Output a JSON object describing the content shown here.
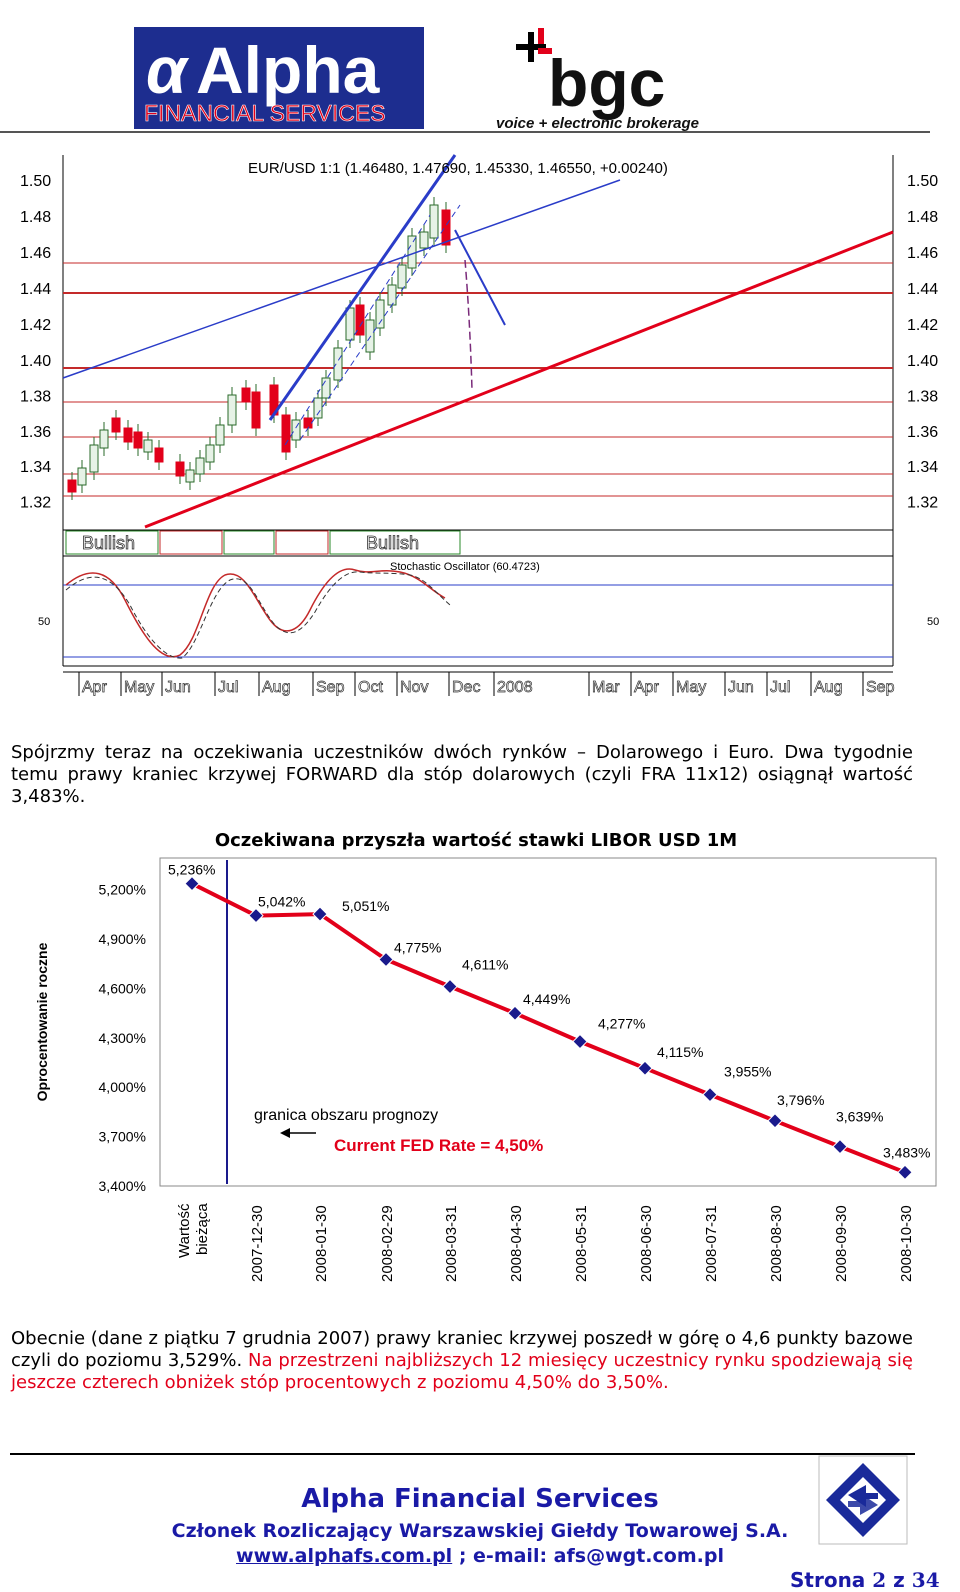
{
  "header": {
    "alpha_logo_text": "Alpha",
    "alpha_logo_sub": "FINANCIAL SERVICES",
    "bgc_logo_text": "bgc",
    "bgc_tagline": "voice + electronic brokerage"
  },
  "fx_chart": {
    "title": "EUR/USD 1:1 (1.46480, 1.47690, 1.45330, 1.46550, +0.00240)",
    "y_ticks": [
      "1.50",
      "1.48",
      "1.46",
      "1.44",
      "1.42",
      "1.40",
      "1.38",
      "1.36",
      "1.34",
      "1.32"
    ],
    "bullish_labels": [
      "Bullish",
      "Bullish"
    ],
    "oscillator_label": "Stochastic Oscillator (60.4723)",
    "oscillator_tick": "50",
    "month_labels": [
      "Apr",
      "May",
      "Jun",
      "Jul",
      "Aug",
      "Sep",
      "Oct",
      "Nov",
      "Dec",
      "2008",
      "Mar",
      "Apr",
      "May",
      "Jun",
      "Jul",
      "Aug",
      "Sep"
    ]
  },
  "para1": "Spójrzmy teraz na oczekiwania uczestników dwóch rynków – Dolarowego i Euro. Dwa tygodnie temu prawy kraniec krzywej FORWARD dla stóp dolarowych (czyli FRA 11x12) osiągnął wartość 3,483%.",
  "chart_data": {
    "type": "line",
    "title": "Oczekiwana przyszła wartość stawki LIBOR USD 1M",
    "ylabel": "Oprocentowanie roczne",
    "xlabel": "",
    "ylim": [
      3.4,
      5.4
    ],
    "y_ticks": [
      "3,400%",
      "3,700%",
      "4,000%",
      "4,300%",
      "4,600%",
      "4,900%",
      "5,200%"
    ],
    "categories": [
      "Wartość bieżąca",
      "2007-12-30",
      "2008-01-30",
      "2008-02-29",
      "2008-03-31",
      "2008-04-30",
      "2008-05-31",
      "2008-06-30",
      "2008-07-31",
      "2008-08-30",
      "2008-09-30",
      "2008-10-30"
    ],
    "values": [
      5.236,
      5.042,
      5.051,
      4.775,
      4.611,
      4.449,
      4.277,
      4.115,
      3.955,
      3.796,
      3.639,
      3.483
    ],
    "data_labels": [
      "5,236%",
      "5,042%",
      "5,051%",
      "4,775%",
      "4,611%",
      "4,449%",
      "4,277%",
      "4,115%",
      "3,955%",
      "3,796%",
      "3,639%",
      "3,483%"
    ],
    "annotations": {
      "boundary": "granica obszaru prognozy",
      "fed": "Current FED Rate = 4,50%"
    },
    "colors": {
      "line": "#e2001a",
      "marker": "#1a1a8c",
      "boundary": "#1a1a8c",
      "fed_text": "#e2001a"
    }
  },
  "para2": {
    "black": "Obecnie (dane z piątku 7 grudnia 2007) prawy kraniec krzywej poszedł w górę o 4,6 punkty bazowe czyli do poziomu 3,529%. ",
    "red": "Na przestrzeni najbliższych 12 miesięcy uczestnicy rynku spodziewają się jeszcze czterech obniżek stóp procentowych z poziomu 4,50% do 3,50%."
  },
  "footer": {
    "title": "Alpha Financial Services",
    "subtitle": "Członek Rozliczający Warszawskiej Giełdy Towarowej S.A.",
    "web": "www.alphafs.com.pl",
    "email": "; e-mail: afs@wgt.com.pl",
    "page_prefix": "Strona",
    "page_current": "2",
    "page_sep": "z",
    "page_total": "34"
  }
}
